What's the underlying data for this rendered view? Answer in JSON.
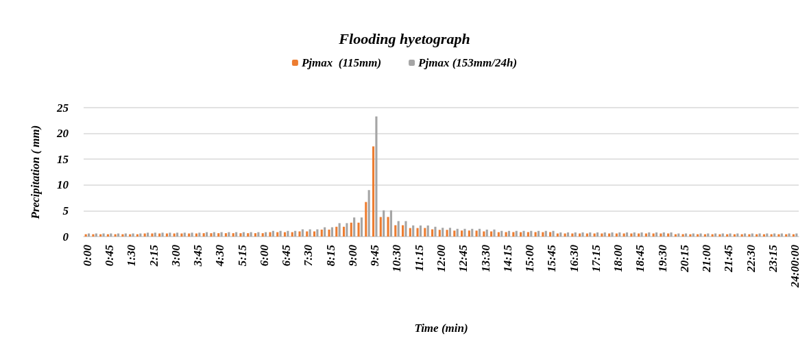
{
  "chart_data": {
    "type": "bar",
    "title": "Flooding hyetograph",
    "xlabel": "Time (min)",
    "ylabel": "Precipitation ( mm)",
    "categories": [
      "0:00",
      null,
      null,
      "0:45",
      null,
      null,
      "1:30",
      null,
      null,
      "2:15",
      null,
      null,
      "3:00",
      null,
      null,
      "3:45",
      null,
      null,
      "4:30",
      null,
      null,
      "5:15",
      null,
      null,
      "6:00",
      null,
      null,
      "6:45",
      null,
      null,
      "7:30",
      null,
      null,
      "8:15",
      null,
      null,
      "9:00",
      null,
      null,
      "9:45",
      null,
      null,
      "10:30",
      null,
      null,
      "11:15",
      null,
      null,
      "12:00",
      null,
      null,
      "12:45",
      null,
      null,
      "13:30",
      null,
      null,
      "14:15",
      null,
      null,
      "15:00",
      null,
      null,
      "15:45",
      null,
      null,
      "16:30",
      null,
      null,
      "17:15",
      null,
      null,
      "18:00",
      null,
      null,
      "18:45",
      null,
      null,
      "19:30",
      null,
      null,
      "20:15",
      null,
      null,
      "21:00",
      null,
      null,
      "21:45",
      null,
      null,
      "22:30",
      null,
      null,
      "23:15",
      null,
      null,
      "24:00:00"
    ],
    "series": [
      {
        "name": "Pjmax  (115mm)",
        "color": "#ed7d31",
        "values": [
          0.45,
          0.45,
          0.45,
          0.45,
          0.45,
          0.45,
          0.45,
          0.45,
          0.6,
          0.6,
          0.6,
          0.6,
          0.6,
          0.6,
          0.6,
          0.6,
          0.65,
          0.65,
          0.65,
          0.65,
          0.65,
          0.65,
          0.65,
          0.65,
          0.65,
          0.85,
          0.85,
          0.85,
          0.85,
          1.0,
          1.0,
          1.0,
          1.35,
          1.35,
          1.9,
          1.9,
          2.7,
          2.7,
          6.7,
          17.5,
          3.8,
          3.8,
          2.2,
          2.2,
          1.65,
          1.65,
          1.65,
          1.4,
          1.3,
          1.3,
          1.15,
          1.15,
          1.15,
          1.15,
          1.0,
          1.0,
          0.85,
          0.85,
          0.85,
          0.85,
          0.85,
          0.85,
          0.85,
          0.85,
          0.6,
          0.6,
          0.6,
          0.6,
          0.6,
          0.6,
          0.6,
          0.6,
          0.6,
          0.6,
          0.6,
          0.6,
          0.6,
          0.6,
          0.6,
          0.6,
          0.45,
          0.45,
          0.45,
          0.45,
          0.45,
          0.45,
          0.45,
          0.45,
          0.45,
          0.45,
          0.45,
          0.45,
          0.45,
          0.45,
          0.45,
          0.45,
          0.45
        ]
      },
      {
        "name": "Pjmax (153mm/24h)",
        "color": "#a5a5a5",
        "values": [
          0.6,
          0.6,
          0.6,
          0.6,
          0.6,
          0.6,
          0.6,
          0.6,
          0.75,
          0.75,
          0.75,
          0.75,
          0.75,
          0.75,
          0.75,
          0.75,
          0.85,
          0.85,
          0.85,
          0.85,
          0.85,
          0.85,
          0.85,
          0.85,
          0.85,
          1.1,
          1.1,
          1.1,
          1.1,
          1.4,
          1.4,
          1.4,
          1.8,
          1.8,
          2.6,
          2.6,
          3.7,
          3.7,
          9.0,
          23.3,
          5.1,
          5.1,
          3.0,
          3.0,
          2.15,
          2.15,
          2.15,
          1.9,
          1.7,
          1.7,
          1.5,
          1.5,
          1.5,
          1.5,
          1.35,
          1.35,
          1.1,
          1.1,
          1.1,
          1.1,
          1.1,
          1.1,
          1.1,
          1.1,
          0.8,
          0.8,
          0.8,
          0.8,
          0.8,
          0.8,
          0.8,
          0.8,
          0.8,
          0.8,
          0.8,
          0.8,
          0.8,
          0.8,
          0.8,
          0.8,
          0.6,
          0.6,
          0.6,
          0.6,
          0.6,
          0.6,
          0.6,
          0.6,
          0.6,
          0.6,
          0.6,
          0.6,
          0.6,
          0.6,
          0.6,
          0.6,
          0.6
        ]
      }
    ],
    "ylim": [
      0,
      25
    ],
    "yticks": [
      0,
      5,
      10,
      15,
      20,
      25
    ],
    "grid": "y",
    "legend": "top"
  }
}
